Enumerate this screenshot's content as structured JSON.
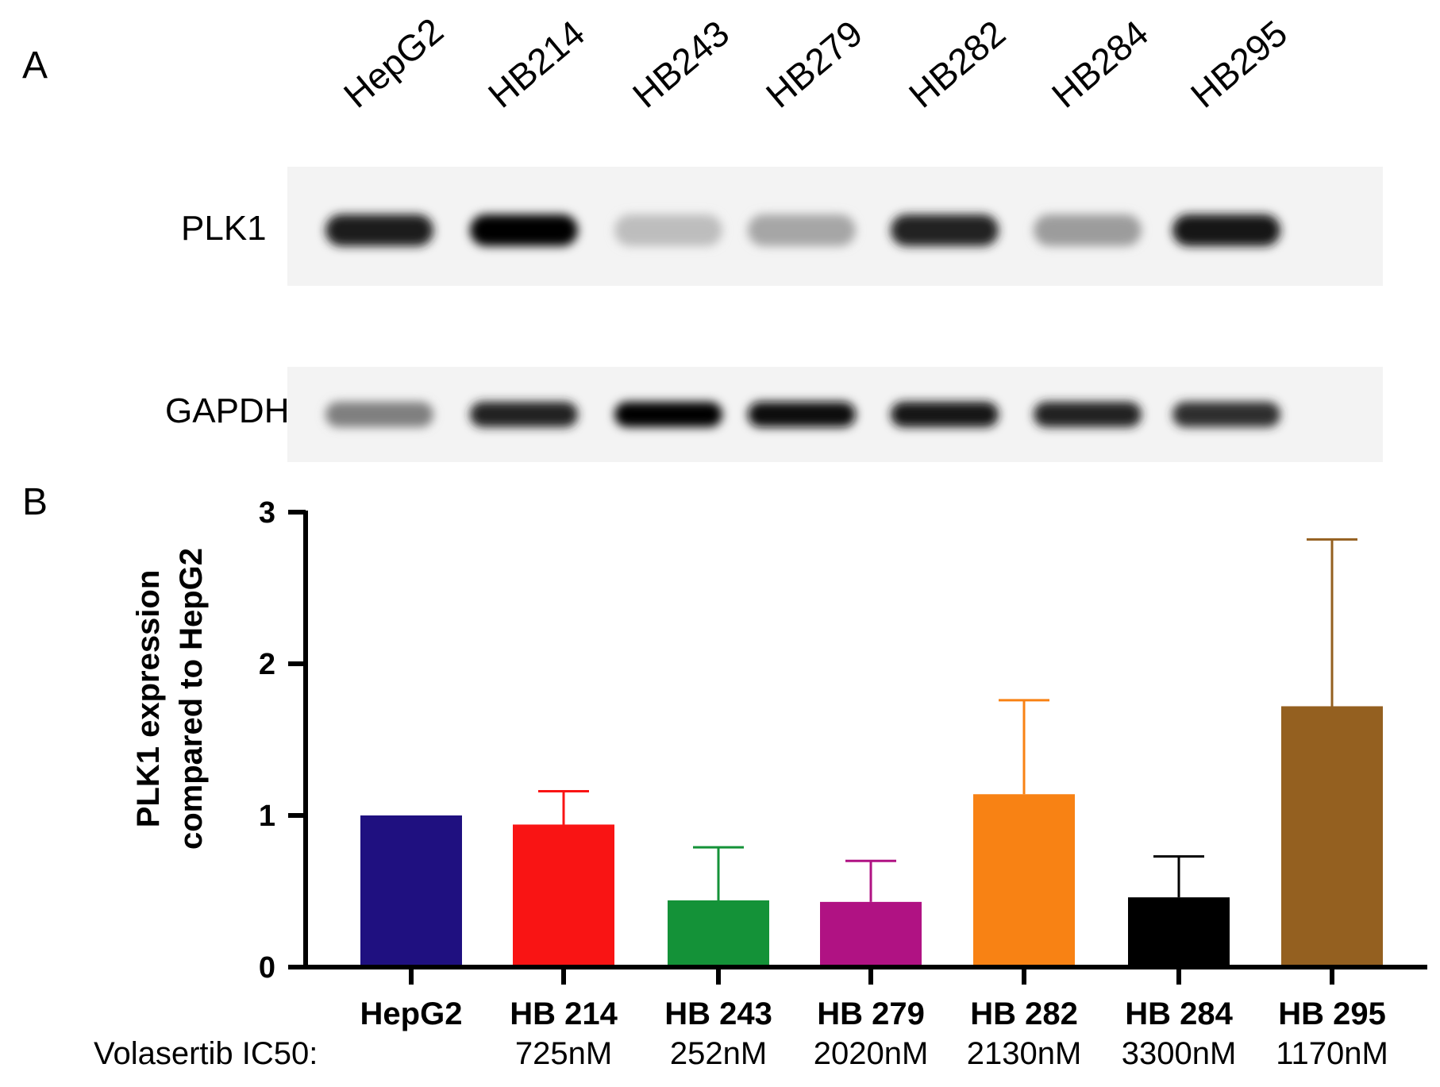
{
  "panel_a": {
    "label": "A",
    "lanes": [
      "HepG2",
      "HB214",
      "HB243",
      "HB279",
      "HB282",
      "HB284",
      "HB295"
    ],
    "proteins": [
      "PLK1",
      "GAPDH"
    ],
    "band_intensity": {
      "PLK1": [
        0.88,
        1.0,
        0.18,
        0.28,
        0.85,
        0.32,
        0.92
      ],
      "GAPDH": [
        0.45,
        0.85,
        1.0,
        0.95,
        0.92,
        0.85,
        0.8
      ]
    }
  },
  "panel_b": {
    "label": "B",
    "ic50_header": "Volasertib IC50:"
  },
  "chart_data": {
    "type": "bar",
    "categories": [
      "HepG2",
      "HB 214",
      "HB 243",
      "HB 279",
      "HB 282",
      "HB 284",
      "HB 295"
    ],
    "values": [
      1.0,
      0.94,
      0.44,
      0.43,
      1.14,
      0.46,
      1.72
    ],
    "error_upper": [
      1.0,
      1.16,
      0.79,
      0.7,
      1.76,
      0.73,
      2.82
    ],
    "colors": [
      "#1f1080",
      "#f91414",
      "#149238",
      "#b01283",
      "#f88214",
      "#000000",
      "#946020"
    ],
    "ic50": [
      "",
      "725nM",
      "252nM",
      "2020nM",
      "2130nM",
      "3300nM",
      "1170nM"
    ],
    "ylabel_lines": [
      "PLK1 expression",
      "compared to HepG2"
    ],
    "xlabel": "",
    "ylim": [
      0,
      3
    ],
    "yticks": [
      0,
      1,
      2,
      3
    ],
    "grid": false,
    "legend": "none"
  }
}
